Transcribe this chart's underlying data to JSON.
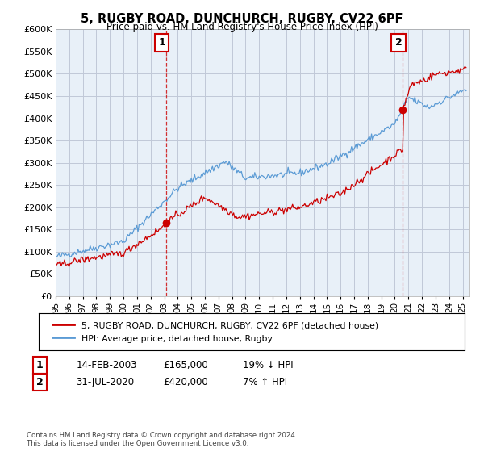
{
  "title": "5, RUGBY ROAD, DUNCHURCH, RUGBY, CV22 6PF",
  "subtitle": "Price paid vs. HM Land Registry's House Price Index (HPI)",
  "ylim": [
    0,
    600000
  ],
  "yticks": [
    0,
    50000,
    100000,
    150000,
    200000,
    250000,
    300000,
    350000,
    400000,
    450000,
    500000,
    550000,
    600000
  ],
  "xlim_start": 1995.0,
  "xlim_end": 2025.5,
  "sale1_x": 2003.12,
  "sale1_y": 165000,
  "sale1_label": "1",
  "sale1_date": "14-FEB-2003",
  "sale1_price": "£165,000",
  "sale1_hpi": "19% ↓ HPI",
  "sale2_x": 2020.58,
  "sale2_y": 420000,
  "sale2_label": "2",
  "sale2_date": "31-JUL-2020",
  "sale2_price": "£420,000",
  "sale2_hpi": "7% ↑ HPI",
  "legend_label_red": "5, RUGBY ROAD, DUNCHURCH, RUGBY, CV22 6PF (detached house)",
  "legend_label_blue": "HPI: Average price, detached house, Rugby",
  "footer1": "Contains HM Land Registry data © Crown copyright and database right 2024.",
  "footer2": "This data is licensed under the Open Government Licence v3.0.",
  "hpi_color": "#5b9bd5",
  "price_color": "#cc0000",
  "chart_bg": "#e8f0f8",
  "bg_color": "#ffffff",
  "grid_color": "#c0c8d8"
}
